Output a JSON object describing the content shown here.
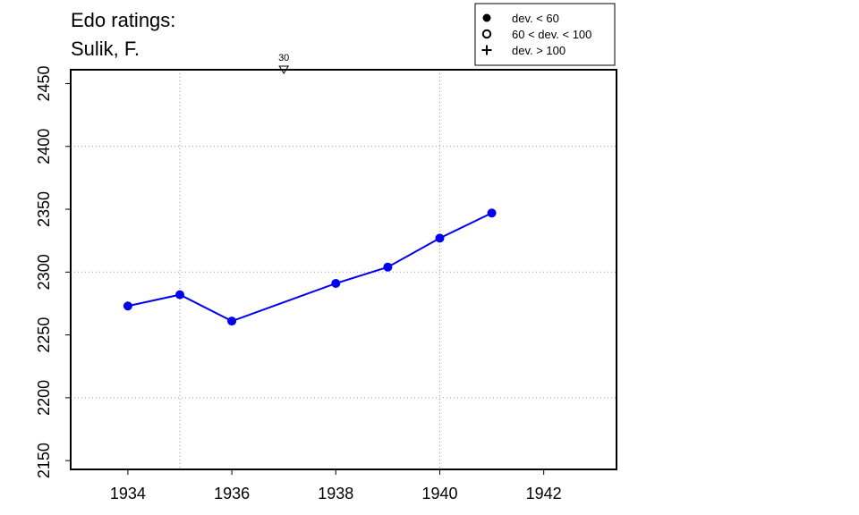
{
  "chart_data": {
    "type": "line",
    "title": "Edo ratings:",
    "subtitle": "Sulik, F.",
    "xlabel": "",
    "ylabel": "",
    "xlim": [
      1932.9,
      1943.4
    ],
    "ylim": [
      2143,
      2461
    ],
    "x_ticks": [
      1934,
      1936,
      1938,
      1940,
      1942
    ],
    "y_ticks": [
      2150,
      2200,
      2250,
      2300,
      2350,
      2400,
      2450
    ],
    "grid_x": [
      1935,
      1940
    ],
    "grid_y": [
      2200,
      2300,
      2400
    ],
    "grid": "dotted",
    "series": [
      {
        "color": "#0000ee",
        "marker": "filled-circle",
        "x": [
          1934,
          1935,
          1936,
          1938,
          1939,
          1940,
          1941
        ],
        "y": [
          2273,
          2282,
          2261,
          2291,
          2304,
          2327,
          2347
        ]
      }
    ],
    "annotations": [
      {
        "x": 1937,
        "y": 2461,
        "label": "30",
        "marker": "down-triangle-open"
      }
    ],
    "legend": {
      "position": "top-right",
      "entries": [
        {
          "label": "dev. < 60",
          "marker": "filled-circle"
        },
        {
          "label": "60 < dev. < 100",
          "marker": "open-circle"
        },
        {
          "label": "dev. > 100",
          "marker": "plus"
        }
      ]
    }
  }
}
